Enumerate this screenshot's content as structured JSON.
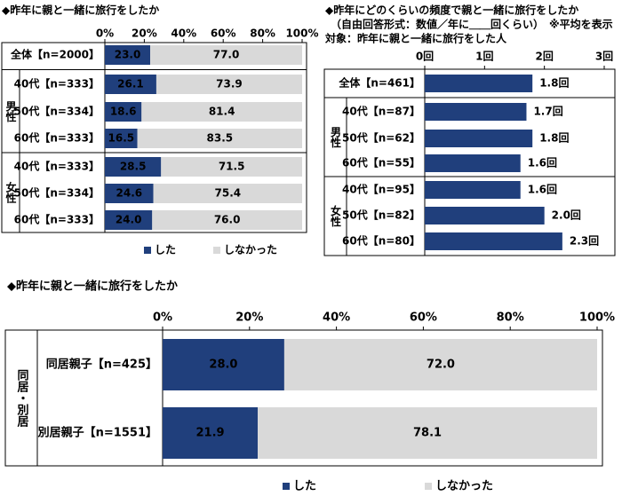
{
  "chart_data": [
    {
      "type": "stacked-bar",
      "title": "◆昨年に親と一緒に旅行をしたか",
      "categories": [
        "全体【n=2000】",
        "40代【n=333】",
        "50代【n=334】",
        "60代【n=333】",
        "40代【n=333】",
        "50代【n=334】",
        "60代【n=333】"
      ],
      "groups": [
        {
          "label": "男性",
          "from": 1,
          "to": 3
        },
        {
          "label": "女性",
          "from": 4,
          "to": 6
        }
      ],
      "series": [
        {
          "name": "した",
          "color": "#203f7c",
          "values": [
            23.0,
            26.1,
            18.6,
            16.5,
            28.5,
            24.6,
            24.0
          ],
          "value_labels": [
            "23.0",
            "26.1",
            "18.6",
            "16.5",
            "28.5",
            "24.6",
            "24.0"
          ]
        },
        {
          "name": "しなかった",
          "color": "#d9d9d9",
          "values": [
            77.0,
            73.9,
            81.4,
            83.5,
            71.5,
            75.4,
            76.0
          ],
          "value_labels": [
            "77.0",
            "73.9",
            "81.4",
            "83.5",
            "71.5",
            "75.4",
            "76.0"
          ]
        }
      ],
      "xlim": [
        0,
        100
      ],
      "xticks": [
        {
          "value": 0,
          "label": "0%"
        },
        {
          "value": 20,
          "label": "20%"
        },
        {
          "value": 40,
          "label": "40%"
        },
        {
          "value": 60,
          "label": "60%"
        },
        {
          "value": 80,
          "label": "80%"
        },
        {
          "value": 100,
          "label": "100%"
        }
      ],
      "legend": "bottom"
    },
    {
      "type": "bar",
      "title": "◆昨年にどのくらいの頻度で親と一緒に旅行をしたか",
      "subtitle": "（自由回答形式：数値／年に＿＿回くらい）　※平均を表示",
      "note": "対象：昨年に親と一緒に旅行をした人",
      "categories": [
        "全体【n=461】",
        "40代【n=87】",
        "50代【n=62】",
        "60代【n=55】",
        "40代【n=95】",
        "50代【n=82】",
        "60代【n=80】"
      ],
      "groups": [
        {
          "label": "男性",
          "from": 1,
          "to": 3
        },
        {
          "label": "女性",
          "from": 4,
          "to": 6
        }
      ],
      "values": [
        1.8,
        1.7,
        1.8,
        1.6,
        1.6,
        2.0,
        2.3
      ],
      "value_labels": [
        "1.8回",
        "1.7回",
        "1.8回",
        "1.6回",
        "1.6回",
        "2.0回",
        "2.3回"
      ],
      "color": "#203f7c",
      "xlim": [
        0,
        3
      ],
      "xticks": [
        {
          "value": 0,
          "label": "0回"
        },
        {
          "value": 1,
          "label": "1回"
        },
        {
          "value": 2,
          "label": "2回"
        },
        {
          "value": 3,
          "label": "3回"
        }
      ]
    },
    {
      "type": "stacked-bar",
      "title": "◆昨年に親と一緒に旅行をしたか",
      "categories": [
        "同居親子【n=425】",
        "別居親子【n=1551】"
      ],
      "groups": [
        {
          "label": "同居・別居",
          "from": 0,
          "to": 1
        }
      ],
      "series": [
        {
          "name": "した",
          "color": "#203f7c",
          "values": [
            28.0,
            21.9
          ],
          "value_labels": [
            "28.0",
            "21.9"
          ]
        },
        {
          "name": "しなかった",
          "color": "#d9d9d9",
          "values": [
            72.0,
            78.1
          ],
          "value_labels": [
            "72.0",
            "78.1"
          ]
        }
      ],
      "xlim": [
        0,
        100
      ],
      "xticks": [
        {
          "value": 0,
          "label": "0%"
        },
        {
          "value": 20,
          "label": "20%"
        },
        {
          "value": 40,
          "label": "40%"
        },
        {
          "value": 60,
          "label": "60%"
        },
        {
          "value": 80,
          "label": "80%"
        },
        {
          "value": 100,
          "label": "100%"
        }
      ],
      "legend": "bottom"
    }
  ]
}
